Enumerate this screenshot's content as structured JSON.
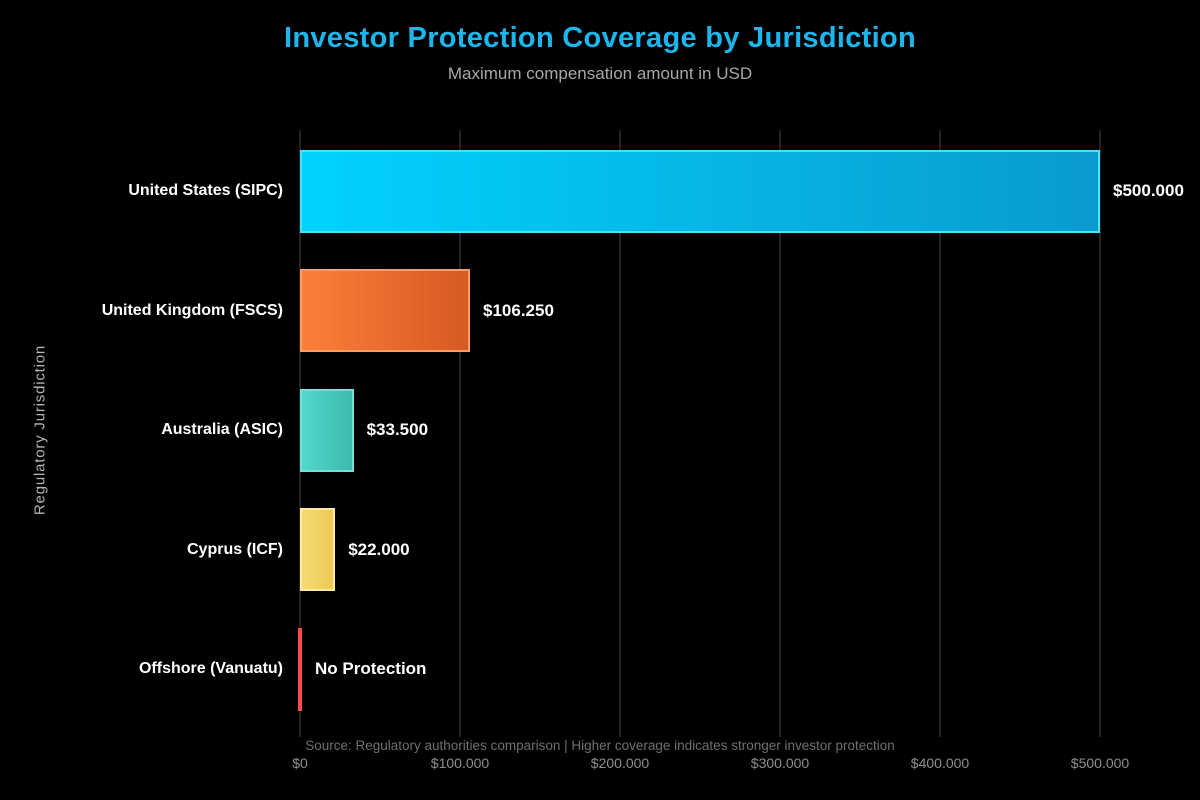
{
  "page": {
    "background_color": "#000000",
    "title_color": "#1cb5ec",
    "gridline_color": "#232323"
  },
  "chart_data": {
    "type": "bar",
    "orientation": "horizontal",
    "title": "Investor Protection Coverage by Jurisdiction",
    "subtitle": "Maximum compensation amount in USD",
    "xlabel": "",
    "ylabel": "Regulatory Jurisdiction",
    "xlim": [
      0,
      500000
    ],
    "grid": true,
    "legend": false,
    "categories": [
      "United States (SIPC)",
      "United Kingdom (FSCS)",
      "Australia (ASIC)",
      "Cyprus (ICF)",
      "Offshore (Vanuatu)"
    ],
    "values": [
      500000,
      106250,
      33500,
      22000,
      0
    ],
    "value_labels": [
      "$500.000",
      "$106.250",
      "$33.500",
      "$22.000",
      "No Protection"
    ],
    "bar_colors": [
      {
        "start": "#00d2ff",
        "end": "#0a9bce",
        "border": "#4fdfff"
      },
      {
        "start": "#fc7f38",
        "end": "#d65a24",
        "border": "#ff9c64"
      },
      {
        "start": "#52d8cc",
        "end": "#3eb9ad",
        "border": "#72e2d8"
      },
      {
        "start": "#f6da74",
        "end": "#ecc957",
        "border": "#ffe9a0"
      },
      {
        "start": "#ff4a4a",
        "end": "#ff4a4a",
        "border": "#ff4a4a"
      }
    ],
    "x_ticks": [
      {
        "label": "$0",
        "value": 0
      },
      {
        "label": "$100.000",
        "value": 100000
      },
      {
        "label": "$200.000",
        "value": 200000
      },
      {
        "label": "$300.000",
        "value": 300000
      },
      {
        "label": "$400.000",
        "value": 400000
      },
      {
        "label": "$500.000",
        "value": 500000
      }
    ],
    "source_note": "Source: Regulatory authorities comparison | Higher coverage indicates stronger investor protection"
  }
}
